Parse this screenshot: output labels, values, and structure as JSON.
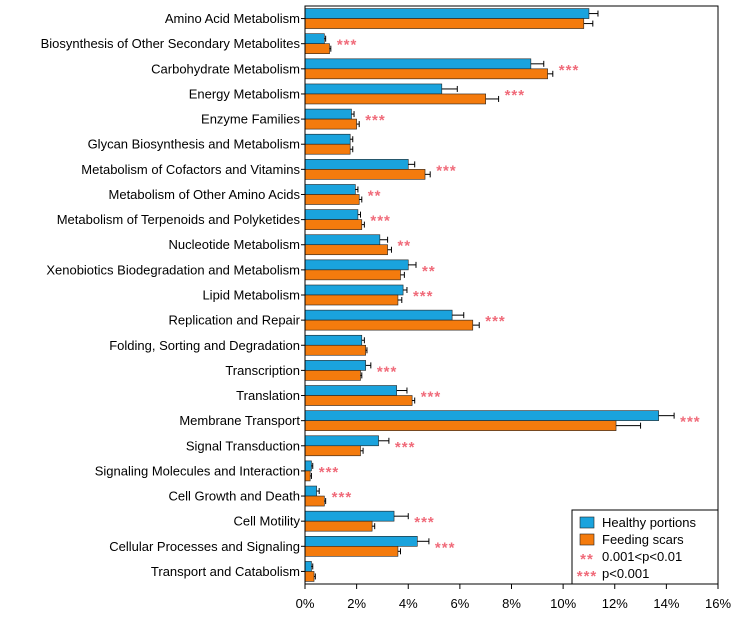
{
  "chart_data": {
    "type": "bar",
    "orientation": "horizontal",
    "categories": [
      "Amino Acid Metabolism",
      "Biosynthesis of Other Secondary Metabolites",
      "Carbohydrate Metabolism",
      "Energy Metabolism",
      "Enzyme Families",
      "Glycan Biosynthesis and Metabolism",
      "Metabolism of Cofactors and Vitamins",
      "Metabolism of Other Amino Acids",
      "Metabolism of Terpenoids and Polyketides",
      "Nucleotide Metabolism",
      "Xenobiotics Biodegradation and Metabolism",
      "Lipid Metabolism",
      "Replication and Repair",
      "Folding, Sorting and Degradation",
      "Transcription",
      "Translation",
      "Membrane Transport",
      "Signal Transduction",
      "Signaling Molecules and Interaction",
      "Cell Growth and Death",
      "Cell Motility",
      "Cellular Processes and Signaling",
      "Transport and Catabolism"
    ],
    "series": [
      {
        "name": "Healthy portions",
        "color": "#1aa3dd",
        "values": [
          11.0,
          0.75,
          8.75,
          5.3,
          1.8,
          1.75,
          4.0,
          1.95,
          2.05,
          2.9,
          4.0,
          3.8,
          5.7,
          2.2,
          2.35,
          3.55,
          13.7,
          2.85,
          0.25,
          0.45,
          3.45,
          4.35,
          0.25
        ],
        "errors": [
          0.35,
          0.05,
          0.5,
          0.6,
          0.1,
          0.1,
          0.25,
          0.1,
          0.1,
          0.3,
          0.3,
          0.15,
          0.45,
          0.1,
          0.2,
          0.4,
          0.6,
          0.4,
          0.05,
          0.1,
          0.55,
          0.45,
          0.05
        ]
      },
      {
        "name": "Feeding scars",
        "color": "#f47b0d",
        "values": [
          10.8,
          0.95,
          9.4,
          7.0,
          2.0,
          1.75,
          4.65,
          2.1,
          2.2,
          3.2,
          3.7,
          3.6,
          6.5,
          2.35,
          2.15,
          4.15,
          12.05,
          2.15,
          0.2,
          0.75,
          2.6,
          3.6,
          0.35
        ],
        "errors": [
          0.35,
          0.05,
          0.2,
          0.5,
          0.1,
          0.1,
          0.2,
          0.1,
          0.1,
          0.15,
          0.15,
          0.15,
          0.25,
          0.05,
          0.05,
          0.1,
          0.95,
          0.1,
          0.05,
          0.05,
          0.1,
          0.1,
          0.05
        ]
      }
    ],
    "significance": [
      "",
      "***",
      "***",
      "***",
      "***",
      "",
      "***",
      "**",
      "***",
      "**",
      "**",
      "***",
      "***",
      "",
      "***",
      "***",
      "***",
      "***",
      "***",
      "***",
      "***",
      "***",
      ""
    ],
    "xlim": [
      0,
      16
    ],
    "xticks": [
      "0%",
      "2%",
      "4%",
      "6%",
      "8%",
      "10%",
      "12%",
      "14%",
      "16%"
    ],
    "xlabel": "",
    "ylabel": "",
    "title": "",
    "grid": false,
    "legend": {
      "position": "bottom-right",
      "entries": [
        {
          "type": "swatch",
          "color": "#1aa3dd",
          "label": "Healthy portions"
        },
        {
          "type": "swatch",
          "color": "#f47b0d",
          "label": "Feeding scars"
        },
        {
          "type": "marker",
          "symbol": "**",
          "label": "0.001<p<0.01"
        },
        {
          "type": "marker",
          "symbol": "***",
          "label": "p<0.001"
        }
      ]
    }
  }
}
